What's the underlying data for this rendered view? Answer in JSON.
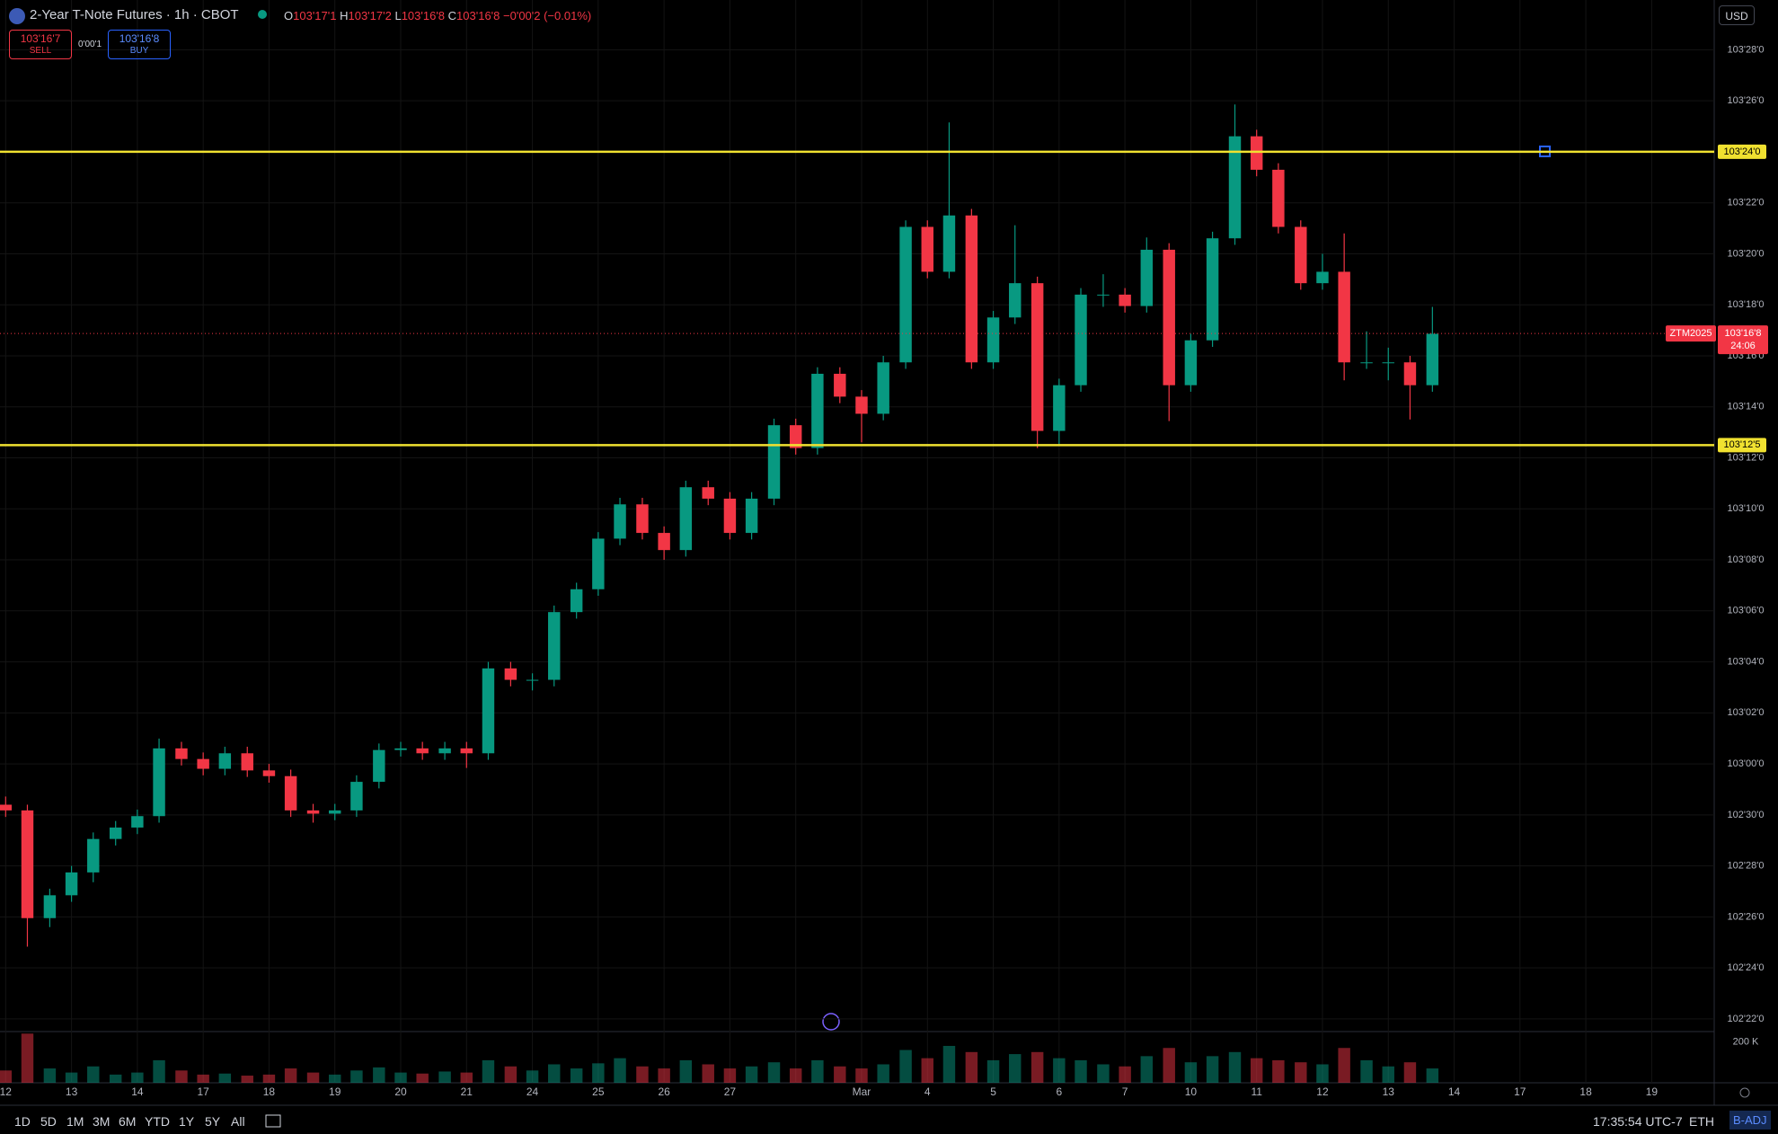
{
  "header": {
    "title": "2-Year T-Note Futures · 1h · CBOT",
    "o_label": "O",
    "o": "103'17'1",
    "h_label": "H",
    "h": "103'17'2",
    "l_label": "L",
    "l": "103'16'8",
    "c_label": "C",
    "c": "103'16'8",
    "change": "−0'00'2 (−0.01%)",
    "sell_price": "103'16'7",
    "sell": "SELL",
    "spread": "0'00'1",
    "buy_price": "103'16'8",
    "buy": "BUY",
    "currency": "USD"
  },
  "toolbar": {
    "ranges": [
      "1D",
      "5D",
      "1M",
      "3M",
      "6M",
      "YTD",
      "1Y",
      "5Y",
      "All"
    ],
    "time": "17:35:54 UTC-7",
    "session": "ETH",
    "adjust": "B-ADJ"
  },
  "chart_data": {
    "type": "candlestick",
    "up_color": "#089981",
    "down_color": "#f23645",
    "categories": [
      "12",
      "13",
      "14",
      "17",
      "18",
      "19",
      "20",
      "21",
      "24",
      "25",
      "26",
      "27",
      null,
      "Mar",
      "4",
      "5",
      "6",
      "7",
      "10",
      "11",
      "12",
      "13",
      "14",
      "17",
      "18",
      "19"
    ],
    "xlim": [
      -0.086,
      25.95
    ],
    "x": [
      0,
      0.33,
      0.67,
      1,
      1.33,
      1.67,
      2,
      2.33,
      2.67,
      3,
      3.33,
      3.67,
      4,
      4.33,
      4.67,
      5,
      5.33,
      5.67,
      6,
      6.33,
      6.67,
      7,
      7.33,
      7.67,
      8,
      8.33,
      8.67,
      9,
      9.33,
      9.67,
      10,
      10.33,
      10.67,
      11,
      11.33,
      11.67,
      12,
      12.33,
      12.67,
      13,
      13.33,
      13.67,
      14,
      14.33,
      14.67,
      15,
      15.33,
      15.67,
      16,
      16.33,
      16.67,
      17,
      17.33,
      17.67,
      18,
      18.33,
      18.67,
      19,
      19.33,
      19.67,
      20,
      20.33,
      20.67,
      21,
      21.33,
      21.67
    ],
    "open": [
      102.95,
      102.943,
      102.811,
      102.839,
      102.867,
      102.908,
      102.922,
      102.936,
      103.019,
      103.006,
      102.994,
      103.013,
      102.992,
      102.985,
      102.943,
      102.939,
      102.943,
      102.978,
      103.017,
      103.019,
      103.013,
      103.019,
      103.013,
      103.117,
      103.103,
      103.103,
      103.186,
      103.214,
      103.276,
      103.318,
      103.283,
      103.262,
      103.339,
      103.325,
      103.283,
      103.325,
      103.415,
      103.387,
      103.478,
      103.45,
      103.429,
      103.492,
      103.658,
      103.603,
      103.672,
      103.492,
      103.547,
      103.589,
      103.408,
      103.464,
      103.575,
      103.575,
      103.561,
      103.63,
      103.464,
      103.519,
      103.644,
      103.769,
      103.728,
      103.658,
      103.589,
      103.603,
      103.492,
      103.492,
      103.492,
      103.464
    ],
    "high": [
      102.96,
      102.95,
      102.847,
      102.875,
      102.916,
      102.93,
      102.944,
      103.031,
      103.027,
      103.014,
      103.021,
      103.021,
      103.0,
      102.993,
      102.951,
      102.951,
      102.986,
      103.025,
      103.027,
      103.027,
      103.027,
      103.027,
      103.125,
      103.125,
      103.111,
      103.194,
      103.222,
      103.284,
      103.326,
      103.326,
      103.291,
      103.347,
      103.347,
      103.333,
      103.333,
      103.423,
      103.423,
      103.486,
      103.486,
      103.458,
      103.5,
      103.666,
      103.666,
      103.786,
      103.68,
      103.555,
      103.66,
      103.597,
      103.472,
      103.583,
      103.6,
      103.583,
      103.645,
      103.638,
      103.527,
      103.652,
      103.808,
      103.777,
      103.736,
      103.666,
      103.625,
      103.65,
      103.53,
      103.51,
      103.5,
      103.56
    ],
    "low": [
      102.935,
      102.776,
      102.8,
      102.831,
      102.855,
      102.9,
      102.914,
      102.928,
      102.998,
      102.986,
      102.986,
      102.984,
      102.977,
      102.935,
      102.928,
      102.931,
      102.935,
      102.97,
      103.009,
      103.005,
      103.005,
      102.995,
      103.005,
      103.095,
      103.09,
      103.095,
      103.178,
      103.206,
      103.268,
      103.275,
      103.25,
      103.254,
      103.317,
      103.275,
      103.275,
      103.317,
      103.379,
      103.379,
      103.442,
      103.394,
      103.421,
      103.484,
      103.595,
      103.595,
      103.484,
      103.484,
      103.539,
      103.387,
      103.39,
      103.456,
      103.56,
      103.553,
      103.553,
      103.42,
      103.456,
      103.511,
      103.636,
      103.72,
      103.65,
      103.581,
      103.581,
      103.47,
      103.484,
      103.47,
      103.422,
      103.456
    ],
    "close": [
      102.943,
      102.811,
      102.839,
      102.867,
      102.908,
      102.922,
      102.936,
      103.019,
      103.006,
      102.994,
      103.013,
      102.992,
      102.985,
      102.943,
      102.939,
      102.943,
      102.978,
      103.017,
      103.019,
      103.013,
      103.019,
      103.013,
      103.117,
      103.103,
      103.103,
      103.186,
      103.214,
      103.276,
      103.318,
      103.283,
      103.262,
      103.339,
      103.325,
      103.283,
      103.325,
      103.415,
      103.387,
      103.478,
      103.45,
      103.429,
      103.492,
      103.658,
      103.603,
      103.672,
      103.492,
      103.547,
      103.589,
      103.408,
      103.464,
      103.575,
      103.575,
      103.561,
      103.63,
      103.464,
      103.519,
      103.644,
      103.769,
      103.728,
      103.658,
      103.589,
      103.603,
      103.492,
      103.492,
      103.492,
      103.464,
      103.527
    ],
    "ylim": [
      102.672,
      103.936
    ],
    "yticks": [
      {
        "value": 103.875,
        "label": "103'28'0"
      },
      {
        "value": 103.8125,
        "label": "103'26'0"
      },
      {
        "value": 103.75,
        "label": "103'24'0"
      },
      {
        "value": 103.6875,
        "label": "103'22'0"
      },
      {
        "value": 103.625,
        "label": "103'20'0"
      },
      {
        "value": 103.5625,
        "label": "103'18'0"
      },
      {
        "value": 103.5,
        "label": "103'16'0"
      },
      {
        "value": 103.4375,
        "label": "103'14'0"
      },
      {
        "value": 103.375,
        "label": "103'12'0"
      },
      {
        "value": 103.3125,
        "label": "103'10'0"
      },
      {
        "value": 103.25,
        "label": "103'08'0"
      },
      {
        "value": 103.1875,
        "label": "103'06'0"
      },
      {
        "value": 103.125,
        "label": "103'04'0"
      },
      {
        "value": 103.0625,
        "label": "103'02'0"
      },
      {
        "value": 103,
        "label": "103'00'0"
      },
      {
        "value": 102.9375,
        "label": "102'30'0"
      },
      {
        "value": 102.875,
        "label": "102'28'0"
      },
      {
        "value": 102.8125,
        "label": "102'26'0"
      },
      {
        "value": 102.75,
        "label": "102'24'0"
      },
      {
        "value": 102.6875,
        "label": "102'22'0"
      }
    ],
    "grid": true,
    "hlines": [
      {
        "value": 103.75,
        "label": "103'24'0",
        "color": "#f0e130"
      },
      {
        "value": 103.390625,
        "label": "103'12'5",
        "color": "#f0e130"
      }
    ],
    "last_price": {
      "symbol": "ZTM2025",
      "value": 103.52734,
      "label": "103'16'8",
      "countdown": "24:06",
      "color": "#f23645"
    },
    "volume": {
      "ylim": [
        0,
        250000
      ],
      "yticks": [
        {
          "value": 200000,
          "label": "200 K"
        }
      ],
      "values": [
        60000,
        240000,
        70000,
        50000,
        80000,
        40000,
        50000,
        110000,
        60000,
        40000,
        45000,
        35000,
        40000,
        70000,
        50000,
        40000,
        60000,
        75000,
        50000,
        45000,
        55000,
        50000,
        110000,
        80000,
        60000,
        90000,
        70000,
        95000,
        120000,
        80000,
        70000,
        110000,
        90000,
        70000,
        80000,
        100000,
        70000,
        110000,
        80000,
        70000,
        90000,
        160000,
        120000,
        180000,
        150000,
        110000,
        140000,
        150000,
        120000,
        110000,
        90000,
        80000,
        130000,
        170000,
        100000,
        130000,
        150000,
        120000,
        110000,
        100000,
        90000,
        170000,
        110000,
        80000,
        100000,
        70000
      ]
    }
  }
}
